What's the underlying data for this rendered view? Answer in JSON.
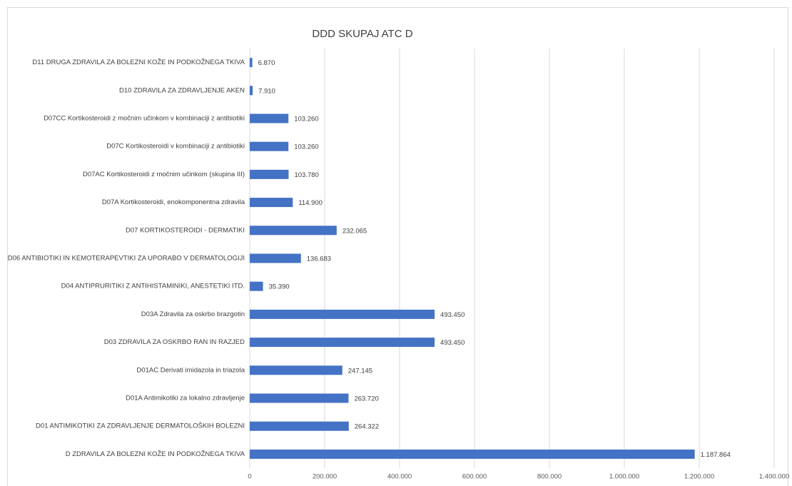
{
  "chart_data": {
    "type": "barh",
    "title": "DDD SKUPAJ ATC D",
    "categories": [
      "D11 DRUGA ZDRAVILA ZA BOLEZNI KOŽE IN PODKOŽNEGA TKIVA",
      "D10 ZDRAVILA ZA ZDRAVLJENJE AKEN",
      "D07CC Kortikosteroidi z močnim učinkom v kombinaciji z antibiotiki",
      "D07C Kortikosteroidi v kombinaciji z antibiotiki",
      "D07AC Kortikosteroidi z močnim učinkom (skupina III)",
      "D07A Kortikosteroidi, enokomponentna zdravila",
      "D07 KORTIKOSTEROIDI - DERMATIKI",
      "D06 ANTIBIOTIKI IN KEMOTERAPEVTIKI ZA UPORABO V DERMATOLOGIJI",
      "D04 ANTIPRURITIKI Z ANTIHISTAMINIKI, ANESTETIKI ITD.",
      "D03A Zdravila za oskrbo brazgotin",
      "D03 ZDRAVILA ZA OSKRBO RAN IN RAZJED",
      "D01AC Derivati imidazola in triazola",
      "D01A Antimikotiki za lokalno zdravljenje",
      "D01 ANTIMIKOTIKI ZA ZDRAVLJENJE DERMATOLOŠKIH BOLEZNI",
      "D ZDRAVILA ZA BOLEZNI KOŽE IN PODKOŽNEGA TKIVA"
    ],
    "values": [
      6870,
      7910,
      103260,
      103260,
      103780,
      114900,
      232065,
      136683,
      35390,
      493450,
      493450,
      247145,
      263720,
      264322,
      1187864
    ],
    "value_labels": [
      "6.870",
      "7.910",
      "103.260",
      "103.260",
      "103.780",
      "114.900",
      "232.065",
      "136.683",
      "35.390",
      "493.450",
      "493.450",
      "247.145",
      "263.720",
      "264.322",
      "1.187.864"
    ],
    "color": "#4472c4",
    "xlim": [
      0,
      1400000
    ],
    "xticks": [
      0,
      {
        "value": 200000,
        "label": "200.000"
      },
      {
        "value": 400000,
        "label": "400.000"
      },
      {
        "value": 600000,
        "label": "600.000"
      },
      {
        "value": 800000,
        "label": "800.000"
      },
      {
        "value": 1000000,
        "label": "1.000.000"
      },
      {
        "value": 1200000,
        "label": "1.200.000"
      },
      {
        "value": 1400000,
        "label": "1.400.000"
      }
    ],
    "grid": true
  }
}
